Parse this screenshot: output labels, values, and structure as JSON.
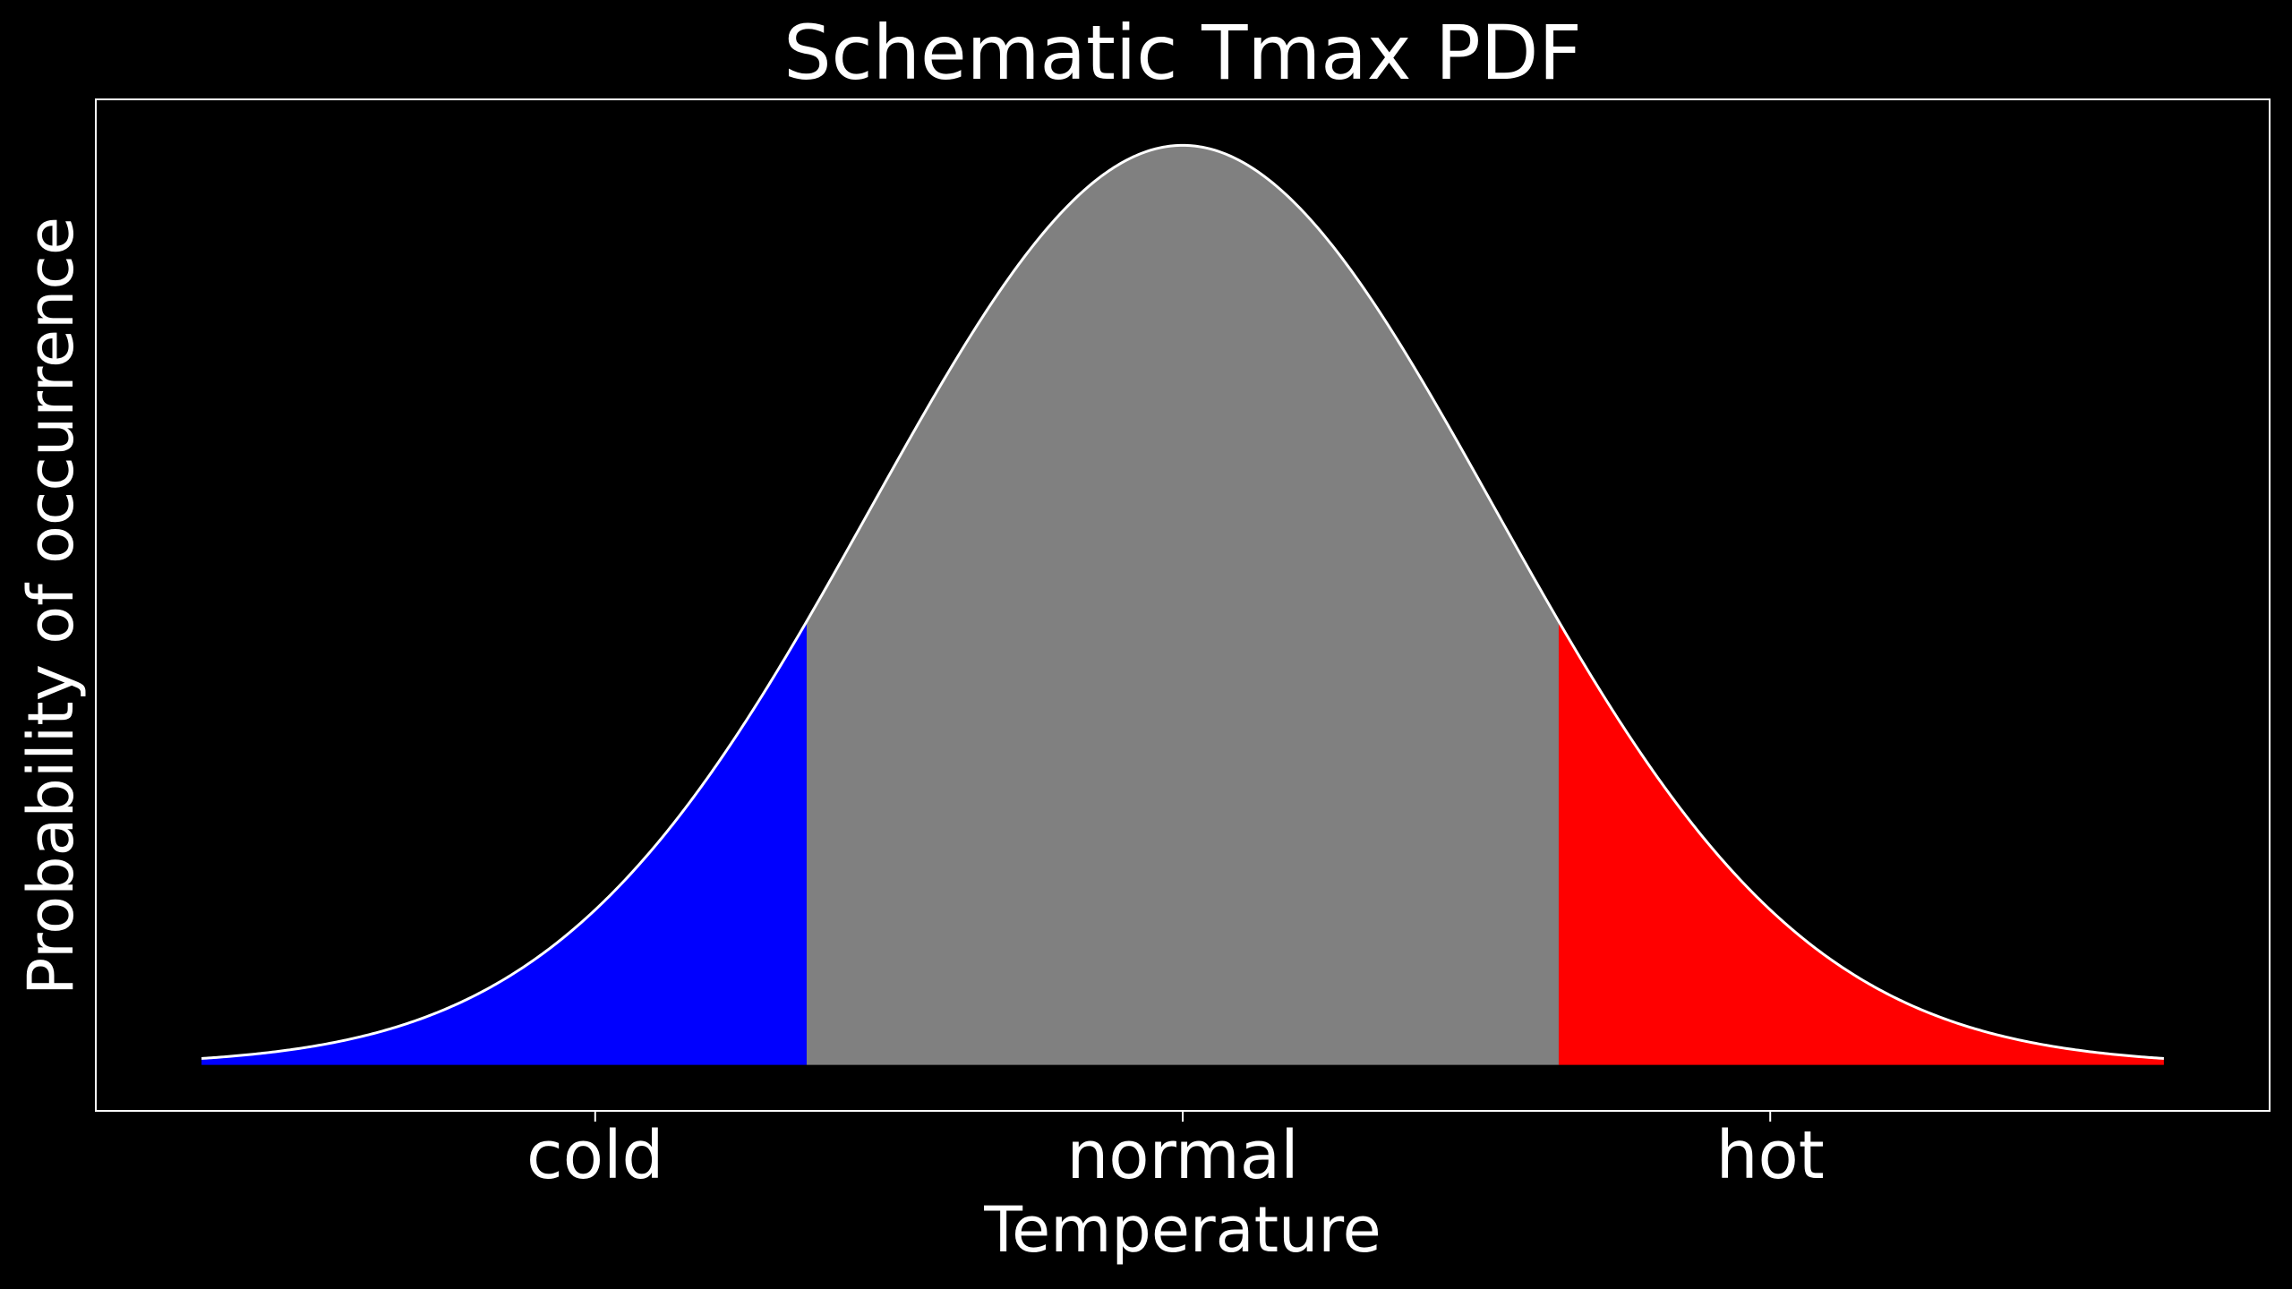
{
  "chart_data": {
    "type": "area",
    "title": "Schematic Tmax PDF",
    "xlabel": "Temperature",
    "ylabel": "Probability of occurrence",
    "categories": [
      "cold",
      "normal",
      "hot"
    ],
    "category_positions": [
      -1,
      0,
      1
    ],
    "xlim": [
      -1.85,
      1.85
    ],
    "ylim": [
      -0.05,
      1.05
    ],
    "distribution": {
      "kind": "normal",
      "mean": 0,
      "sigma": 0.53,
      "x_range": [
        -1.67,
        1.67
      ],
      "peak": 1
    },
    "regions": [
      {
        "label": "cold",
        "from": -1.67,
        "to": -0.64,
        "color": "#0000ff"
      },
      {
        "label": "normal",
        "from": -0.64,
        "to": 0.64,
        "color": "#808080"
      },
      {
        "label": "hot",
        "from": 0.64,
        "to": 1.67,
        "color": "#ff0000"
      }
    ],
    "curve_color": "#ffffff",
    "background_color": "#000000",
    "frame_color": "#ffffff",
    "grid": false,
    "legend": "none"
  }
}
